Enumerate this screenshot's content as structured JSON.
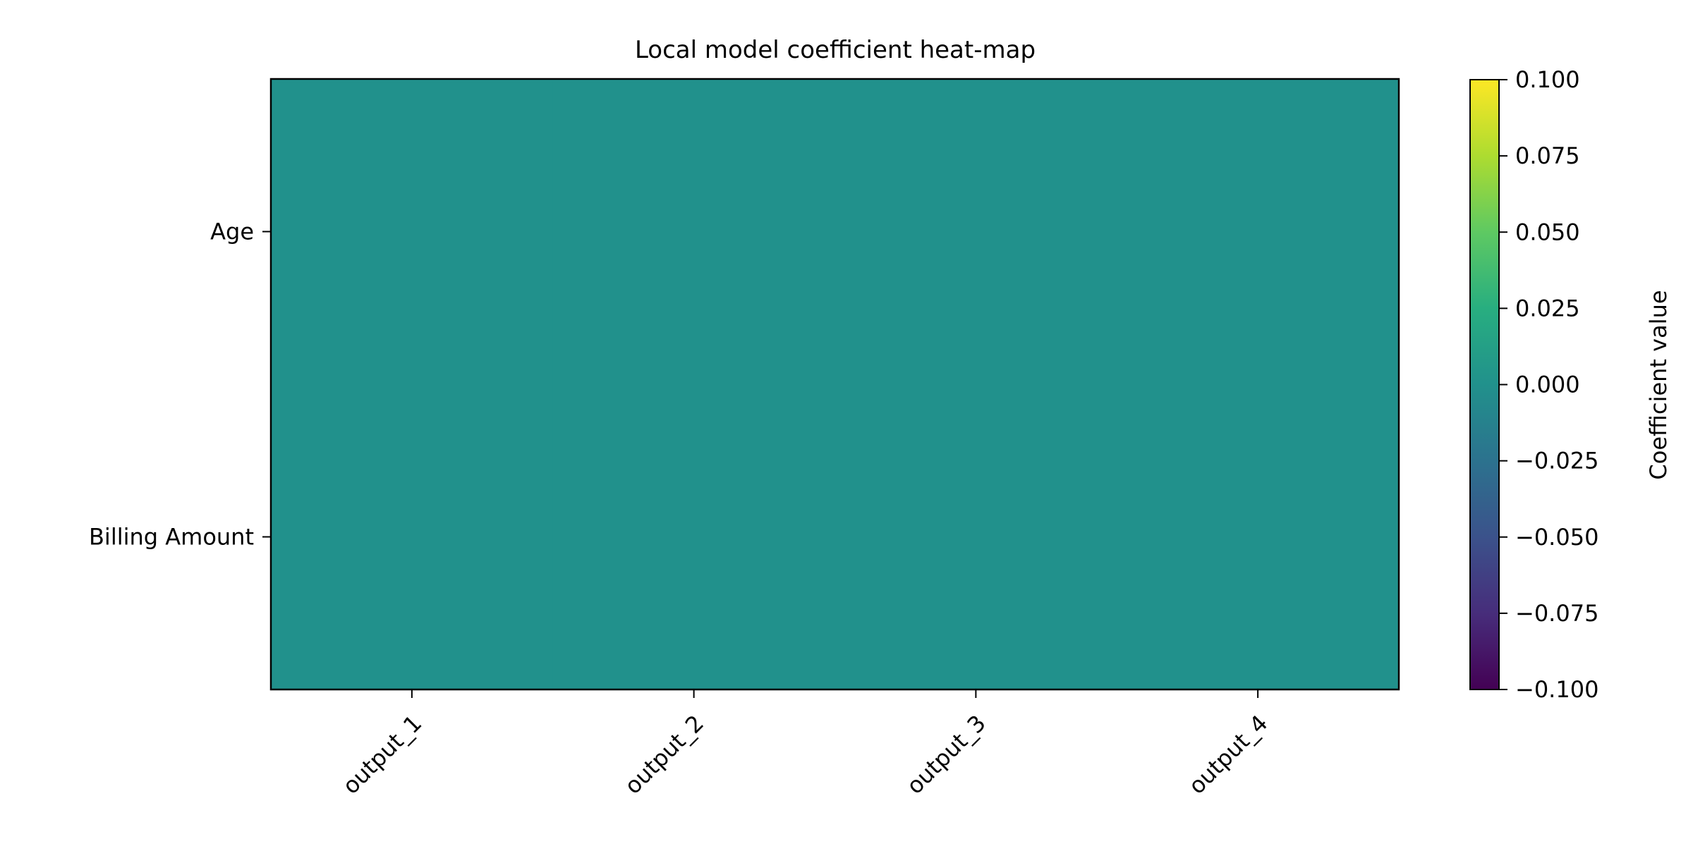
{
  "chart_data": {
    "type": "heatmap",
    "title": "Local model coefficient heat-map",
    "x_categories": [
      "output_1",
      "output_2",
      "output_3",
      "output_4"
    ],
    "y_categories": [
      "Age",
      "Billing Amount"
    ],
    "values": [
      [
        0.0,
        0.0,
        0.0,
        0.0
      ],
      [
        0.0,
        0.0,
        0.0,
        0.0
      ]
    ],
    "colorbar": {
      "label": "Coefficient value",
      "colormap": "viridis",
      "range": [
        -0.1,
        0.1
      ],
      "ticks": [
        0.1,
        0.075,
        0.05,
        0.025,
        0.0,
        -0.025,
        -0.05,
        -0.075,
        -0.1
      ],
      "tick_labels": [
        "0.100",
        "0.075",
        "0.050",
        "0.025",
        "0.000",
        "−0.025",
        "−0.050",
        "−0.075",
        "−0.100"
      ]
    }
  }
}
